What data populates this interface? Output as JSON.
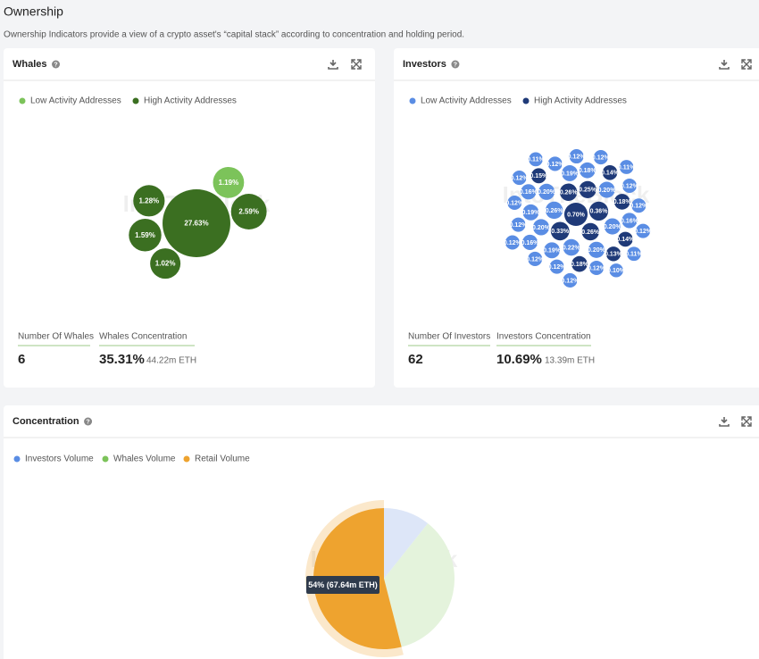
{
  "header": {
    "title": "Ownership",
    "subtitle": "Ownership Indicators provide a view of a crypto asset's “capital stack” according to concentration and holding period."
  },
  "watermark": "IntoTheBlock",
  "chart_data": [
    {
      "type": "bubble",
      "title": "Whales",
      "series": [
        {
          "name": "Low Activity Addresses",
          "color": "#7cc35a",
          "values": [
            1.19
          ],
          "value_labels": [
            "1.19%"
          ]
        },
        {
          "name": "High Activity Addresses",
          "color": "#3b6f21",
          "values": [
            1.28,
            2.59,
            1.02,
            1.59,
            27.63
          ],
          "value_labels": [
            "1.28%",
            "2.59%",
            "1.02%",
            "1.59%",
            "27.63%"
          ]
        }
      ],
      "stats": [
        {
          "label": "Number Of Whales",
          "value": "6"
        },
        {
          "label": "Whales Concentration",
          "value": "35.31%",
          "unit": "44.22m ETH"
        }
      ]
    },
    {
      "type": "bubble",
      "title": "Investors",
      "series": [
        {
          "name": "Low Activity Addresses",
          "color": "#5a8de4",
          "values": [
            0.19,
            0.12,
            0.11,
            0.18,
            0.12,
            0.16,
            0.22,
            0.12,
            0.12,
            0.2,
            0.19,
            0.11,
            0.1,
            0.2,
            0.16,
            0.12,
            0.26,
            0.2,
            0.12,
            0.2,
            0.19,
            0.12,
            0.12,
            0.12,
            0.12,
            0.12,
            0.12,
            0.11,
            0.12,
            0.2,
            0.16,
            0.12
          ],
          "value_labels": [
            "0.19%",
            "0.12%",
            "0.11%",
            "0.18%",
            "0.12%",
            "0.16%",
            "0.22%",
            "0.12%",
            "0.12%",
            "0.20%",
            "0.19%",
            "0.11%",
            "0.10%",
            "0.20%",
            "0.16%",
            "0.12%",
            "0.26%",
            "0.20%",
            "0.12%",
            "0.20%",
            "0.19%",
            "0.12%",
            "0.12%",
            "0.12%",
            "0.12%",
            "0.12%",
            "0.12%",
            "0.11%",
            "0.12%",
            "0.20%",
            "0.16%",
            "0.12%"
          ]
        },
        {
          "name": "High Activity Addresses",
          "color": "#1f3a78",
          "values": [
            0.18,
            0.14,
            0.25,
            0.26,
            0.26,
            0.36,
            0.33,
            0.7,
            0.13,
            0.14,
            0.15,
            0.18
          ],
          "value_labels": [
            "0.18%",
            "0.14%",
            "0.25%",
            "0.26%",
            "0.26%",
            "0.36%",
            "0.33%",
            "0.70%",
            "0.13%",
            "0.14%",
            "0.15%",
            "0.18%"
          ]
        }
      ],
      "stats": [
        {
          "label": "Number Of Investors",
          "value": "62"
        },
        {
          "label": "Investors Concentration",
          "value": "10.69%",
          "unit": "13.39m ETH"
        }
      ]
    },
    {
      "type": "pie",
      "title": "Concentration",
      "categories": [
        "Investors Volume",
        "Whales Volume",
        "Retail Volume"
      ],
      "values": [
        10.69,
        35.31,
        54
      ],
      "colors": [
        "#5a8de4",
        "#7cc35a",
        "#eea32f"
      ],
      "faded_colors": [
        "#dde6f8",
        "#e4f3dc",
        "#eea32f"
      ],
      "active_index": 2,
      "tooltip": "54% (67.64m ETH)"
    }
  ]
}
